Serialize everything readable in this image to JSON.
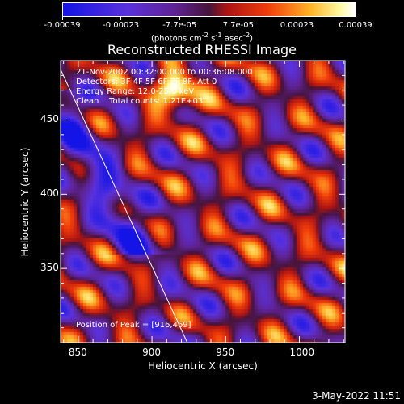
{
  "colorbar": {
    "ticks": [
      "-0.00039",
      "-0.00023",
      "-7.7e-05",
      "7.7e-05",
      "0.00023",
      "0.00039"
    ],
    "units_prefix": "(photons cm",
    "units_exp1": "-2",
    "units_mid": " s",
    "units_exp2": "-1",
    "units_mid2": " asec",
    "units_exp3": "-2",
    "units_suffix": ")"
  },
  "chart_data": {
    "type": "heatmap",
    "title": "Reconstructed RHESSI Image",
    "xlabel": "Heliocentric X (arcsec)",
    "ylabel": "Heliocentric Y (arcsec)",
    "xlim": [
      838,
      1031
    ],
    "ylim": [
      300,
      490
    ],
    "xticks": [
      850,
      900,
      950,
      1000
    ],
    "yticks": [
      350,
      400,
      450
    ],
    "colorbar_range": [
      -0.00039,
      0.00039
    ],
    "peak_position": [
      916,
      469
    ],
    "limb_line": [
      [
        838,
        484
      ],
      [
        924,
        300
      ]
    ]
  },
  "info": {
    "line1": "21-Nov-2002 00:32:00.000 to 00:36:08.000",
    "line2": "Detectors: 3F 4F 5F 6F 7F 8F, Att 0",
    "line3": "Energy Range: 12.0-25.0 keV",
    "line4": "Clean    Total counts: 1.21E+03",
    "peak": "Position of Peak = [916,469]"
  },
  "footer": {
    "date": "3-May-2022 11:51"
  }
}
